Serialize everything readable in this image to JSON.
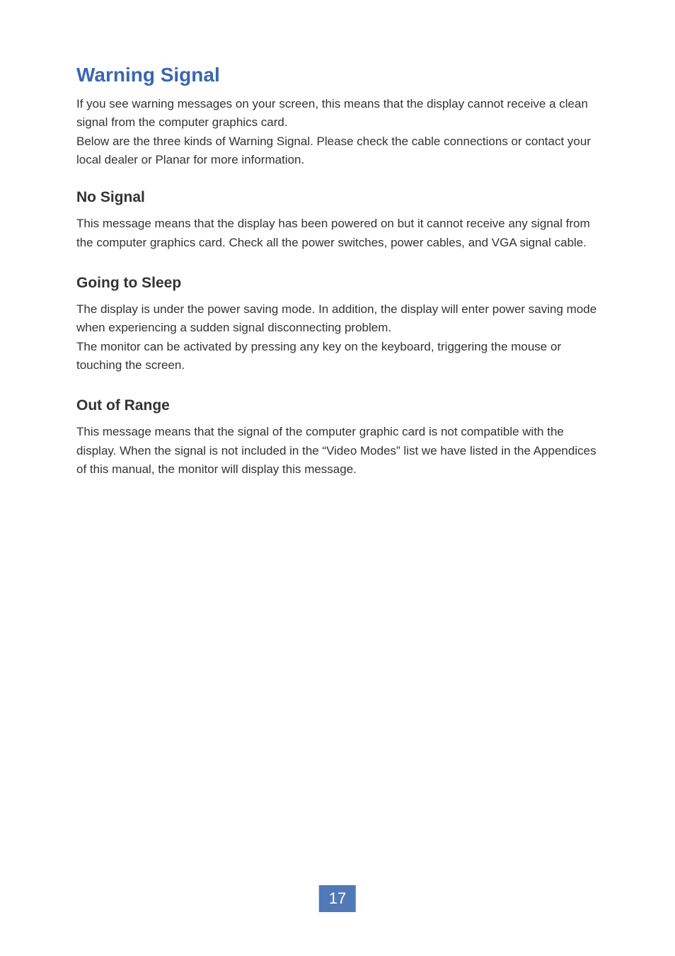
{
  "colors": {
    "title_color": "#3967b0",
    "body_text_color": "#333333",
    "page_number_bg": "#5179b8",
    "page_number_text": "#ffffff",
    "background": "#ffffff"
  },
  "typography": {
    "main_title_fontsize": 28,
    "section_heading_fontsize": 21,
    "body_fontsize": 17,
    "page_number_fontsize": 22,
    "font_family": "Arial, Helvetica, sans-serif"
  },
  "main_title": "Warning Signal",
  "intro_paragraph_1": "If you see warning messages on your screen, this means that the display cannot receive a clean signal from the computer graphics card.",
  "intro_paragraph_2": "Below are the three kinds of Warning Signal. Please check the cable connections or contact your local dealer or Planar for more information.",
  "sections": [
    {
      "heading": "No Signal",
      "body": "This message means that the display has been powered on but it cannot receive any signal from the computer graphics card. Check all the power switches, power cables, and VGA signal cable."
    },
    {
      "heading": "Going to Sleep",
      "body_1": "The display is under the power saving mode. In addition, the display will enter power saving mode when experiencing a sudden signal disconnecting problem.",
      "body_2": "The monitor can be activated by pressing any key on the keyboard, triggering the mouse or touching the screen."
    },
    {
      "heading": "Out of Range",
      "body": "This message means that the signal of the computer graphic card is not compatible with the display. When the signal is not included in the “Video Modes” list we have listed in the Appendices of this manual, the monitor will display this message."
    }
  ],
  "page_number": "17"
}
